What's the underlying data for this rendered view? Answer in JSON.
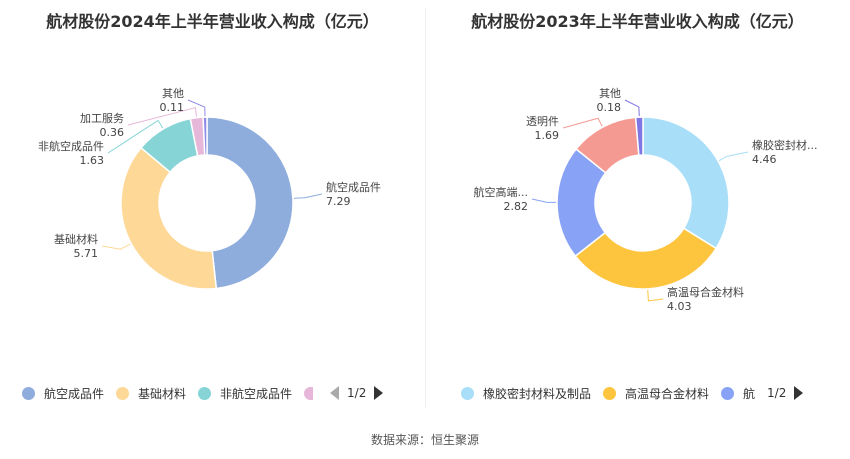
{
  "source": "数据来源：恒生聚源",
  "chart_data": [
    {
      "type": "pie",
      "title": "航材股份2024年上半年营业收入构成（亿元）",
      "categories": [
        "航空成品件",
        "基础材料",
        "非航空成品件",
        "加工服务",
        "其他"
      ],
      "values": [
        7.29,
        5.71,
        1.63,
        0.36,
        0.11
      ],
      "colors": [
        "#8eaddd",
        "#fdd897",
        "#86d4d6",
        "#e6b7d8",
        "#8f8be8"
      ],
      "legend_visible": [
        "航空成品件",
        "基础材料",
        "非航空成品件"
      ],
      "legend_page": "1/2"
    },
    {
      "type": "pie",
      "title": "航材股份2023年上半年营业收入构成（亿元）",
      "categories": [
        "橡胶密封材料及制品",
        "高温母合金材料",
        "航空高端...",
        "透明件",
        "其他"
      ],
      "labels": [
        "橡胶密封材...",
        "高温母合金材料",
        "航空高端...",
        "透明件",
        "其他"
      ],
      "values": [
        4.46,
        4.03,
        2.82,
        1.69,
        0.18
      ],
      "colors": [
        "#a8def8",
        "#fdc43e",
        "#88a3f6",
        "#f59a92",
        "#7f76e3"
      ],
      "legend_visible": [
        "橡胶密封材料及制品",
        "高温母合金材料",
        "航"
      ],
      "legend_page": "1/2"
    }
  ]
}
